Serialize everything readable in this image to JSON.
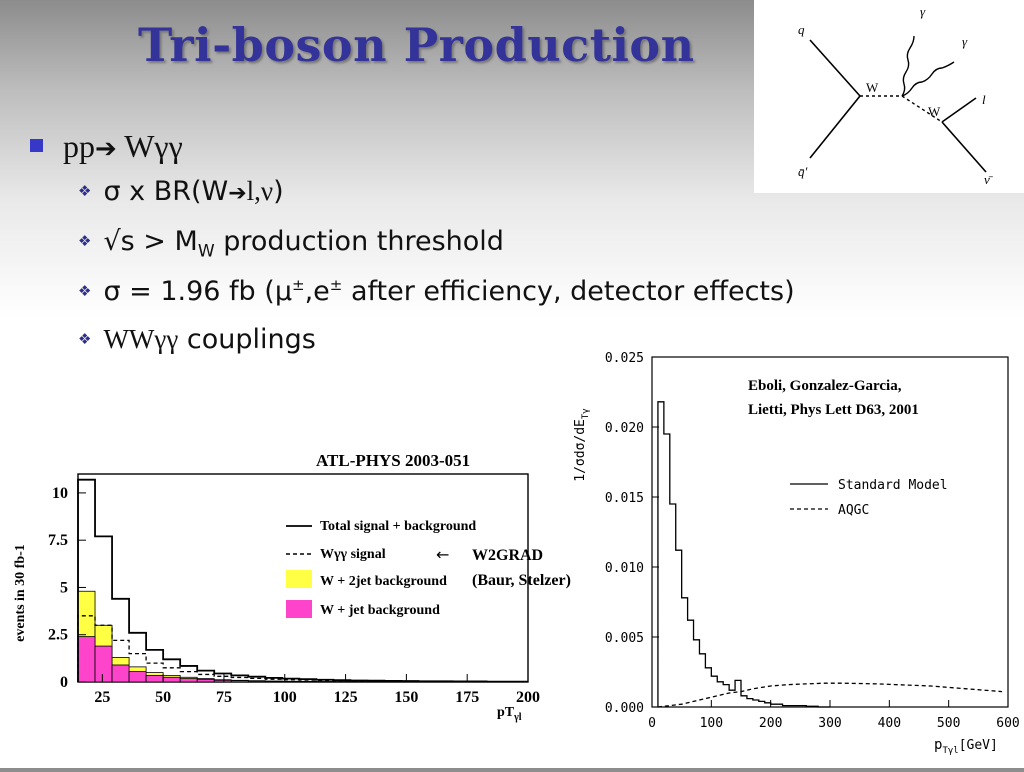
{
  "slide": {
    "title": "Tri-boson Production",
    "bullet_main_pre": "pp",
    "bullet_main_arrow": "➔",
    "bullet_main_post": " Wγγ",
    "subs": [
      {
        "a": "σ x BR(W",
        "arrow": "➔",
        "b": "l,ν",
        "c": ")"
      },
      {
        "a": "√s > M",
        "sub": "W",
        "b": " production threshold"
      },
      {
        "a": "σ = 1.96 fb (μ",
        "sup1": "±",
        "b": ",e",
        "sup2": "±",
        "c": " after efficiency, detector effects)"
      },
      {
        "a": "WWγγ",
        "b": " couplings"
      }
    ]
  },
  "diagram": {
    "labels": {
      "q": "q",
      "qbar": "q̄′",
      "w1": "W",
      "w2": "W",
      "gamma1": "γ",
      "gamma2": "γ",
      "l": "l",
      "nu": "ν̄"
    }
  },
  "chart_data": [
    {
      "type": "bar",
      "title": "ATL-PHYS 2003-051",
      "ylabel": "events in 30 fb-1",
      "xlabel": "pT",
      "xlabel_sub": "γl",
      "xlim": [
        15,
        200
      ],
      "ylim": [
        0,
        11
      ],
      "xticks": [
        25,
        50,
        75,
        100,
        125,
        150,
        175,
        200
      ],
      "yticks": [
        0,
        2.5,
        5,
        7.5,
        10
      ],
      "xtick_labels": [
        "25",
        "50",
        "75",
        "100",
        "125",
        "150",
        "175",
        "200"
      ],
      "ytick_labels": [
        "0",
        "2.5",
        "5",
        "7.5",
        "10"
      ],
      "bin_edges": [
        15,
        22,
        29,
        36,
        43,
        50,
        57,
        64,
        71,
        78,
        85,
        92,
        99,
        106,
        113,
        120,
        127,
        134,
        141,
        148,
        155,
        162,
        169,
        176,
        183,
        190,
        197,
        200
      ],
      "series": [
        {
          "name": "Total signal + background",
          "style": "solid",
          "values": [
            10.7,
            7.7,
            4.4,
            2.6,
            1.7,
            1.2,
            0.85,
            0.6,
            0.45,
            0.35,
            0.28,
            0.22,
            0.18,
            0.15,
            0.12,
            0.1,
            0.08,
            0.07,
            0.06,
            0.05,
            0.04,
            0.04,
            0.03,
            0.03,
            0.02,
            0.02,
            0.02
          ]
        },
        {
          "name": "Wγγ signal",
          "style": "dashed",
          "values": [
            3.5,
            3.0,
            2.2,
            1.5,
            1.0,
            0.75,
            0.55,
            0.4,
            0.3,
            0.24,
            0.19,
            0.15,
            0.12,
            0.1,
            0.08,
            0.07,
            0.06,
            0.05,
            0.04,
            0.035,
            0.03,
            0.025,
            0.02,
            0.02,
            0.015,
            0.015,
            0.01
          ]
        },
        {
          "name": "W + 2jet background",
          "style": "fill",
          "color": "#ffff44",
          "values": [
            4.8,
            3.0,
            1.3,
            0.8,
            0.5,
            0.35,
            0.25,
            0.18,
            0.12,
            0.09,
            0.07,
            0.05,
            0.04,
            0.03,
            0.02,
            0.02,
            0.015,
            0.01,
            0.01,
            0.01,
            0.01,
            0.005,
            0.005,
            0.005,
            0.005,
            0.005,
            0.005
          ]
        },
        {
          "name": "W + jet background",
          "style": "fill",
          "color": "#ff44cc",
          "values": [
            2.4,
            1.9,
            0.9,
            0.55,
            0.35,
            0.25,
            0.18,
            0.13,
            0.09,
            0.07,
            0.05,
            0.04,
            0.03,
            0.025,
            0.02,
            0.015,
            0.01,
            0.01,
            0.01,
            0.005,
            0.005,
            0.005,
            0.005,
            0.005,
            0.005,
            0.005,
            0.005
          ]
        }
      ],
      "annotation": {
        "arrow": "←",
        "line1": "W2GRAD",
        "line2": "(Baur, Stelzer)"
      }
    },
    {
      "type": "line",
      "ylabel": "1/σdσ/dE",
      "ylabel_sub": "Tγ",
      "xlabel": "p",
      "xlabel_sub": "Tγl",
      "xlabel_unit": "[GeV]",
      "xlim": [
        0,
        600
      ],
      "ylim": [
        0,
        0.025
      ],
      "xticks": [
        0,
        100,
        200,
        300,
        400,
        500,
        600
      ],
      "yticks": [
        0,
        0.005,
        0.01,
        0.015,
        0.02,
        0.025
      ],
      "xtick_labels": [
        "0",
        "100",
        "200",
        "300",
        "400",
        "500",
        "600"
      ],
      "ytick_labels": [
        "0.000",
        "0.005",
        "0.010",
        "0.015",
        "0.020",
        "0.025"
      ],
      "annotation": {
        "line1": "Eboli, Gonzalez-Garcia,",
        "line2": "Lietti, Phys Lett D63, 2001"
      },
      "series": [
        {
          "name": "Standard Model",
          "style": "solid",
          "x": [
            10,
            20,
            30,
            40,
            50,
            60,
            70,
            80,
            90,
            100,
            110,
            120,
            130,
            140,
            150,
            160,
            170,
            180,
            190,
            200,
            220,
            240,
            260,
            280,
            300
          ],
          "y": [
            0.0,
            0.0218,
            0.0195,
            0.0145,
            0.0112,
            0.0078,
            0.0062,
            0.0048,
            0.0038,
            0.0028,
            0.0022,
            0.0018,
            0.0016,
            0.0012,
            0.0019,
            0.0008,
            0.0006,
            0.0005,
            0.0004,
            0.0003,
            0.0002,
            0.0001,
            0.0001,
            5e-05,
            0.0
          ]
        },
        {
          "name": "AQGC",
          "style": "dashed",
          "x": [
            10,
            30,
            50,
            70,
            90,
            110,
            130,
            150,
            170,
            200,
            230,
            260,
            290,
            320,
            350,
            380,
            410,
            440,
            470,
            500,
            530,
            560,
            590
          ],
          "y": [
            0.0,
            0.0001,
            0.0002,
            0.0004,
            0.0006,
            0.0008,
            0.001,
            0.0011,
            0.0013,
            0.0015,
            0.0016,
            0.00165,
            0.0017,
            0.0017,
            0.00168,
            0.00165,
            0.0016,
            0.00155,
            0.0015,
            0.0014,
            0.0013,
            0.0012,
            0.0011
          ]
        }
      ]
    }
  ]
}
